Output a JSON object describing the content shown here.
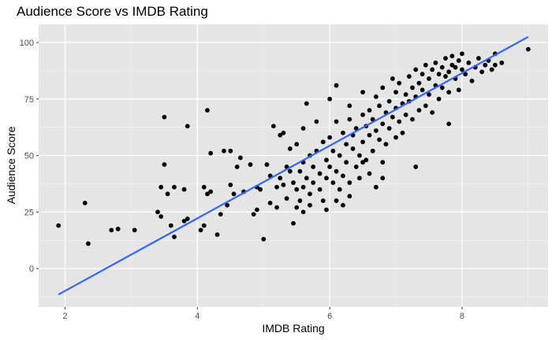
{
  "chart_data": {
    "type": "scatter",
    "title": "Audience Score vs IMDB Rating",
    "xlabel": "IMDB Rating",
    "ylabel": "Audience Score",
    "xlim": [
      1.6,
      9.3
    ],
    "ylim": [
      -17,
      108
    ],
    "x_ticks": [
      2,
      4,
      6,
      8
    ],
    "y_ticks": [
      0,
      25,
      50,
      75,
      100
    ],
    "x_tick_labels": [
      "2",
      "4",
      "6",
      "8"
    ],
    "y_tick_labels": [
      "0",
      "25",
      "50",
      "75",
      "100"
    ],
    "grid": true,
    "background": "#e5e5e5",
    "point_color": "#000000",
    "line_color": "#3366ff",
    "regression_line": {
      "x": [
        1.9,
        9.0
      ],
      "y": [
        -11.5,
        102.5
      ]
    },
    "points": [
      [
        1.9,
        19
      ],
      [
        2.3,
        29
      ],
      [
        2.35,
        11
      ],
      [
        2.7,
        17
      ],
      [
        2.8,
        17.5
      ],
      [
        3.05,
        17
      ],
      [
        3.4,
        25
      ],
      [
        3.45,
        36
      ],
      [
        3.45,
        23
      ],
      [
        3.5,
        46
      ],
      [
        3.5,
        67
      ],
      [
        3.55,
        33
      ],
      [
        3.6,
        19
      ],
      [
        3.65,
        14
      ],
      [
        3.65,
        36
      ],
      [
        3.8,
        21
      ],
      [
        3.8,
        35
      ],
      [
        3.85,
        63
      ],
      [
        3.85,
        22
      ],
      [
        4.05,
        17
      ],
      [
        4.1,
        36
      ],
      [
        4.1,
        19
      ],
      [
        4.15,
        70
      ],
      [
        4.15,
        33
      ],
      [
        4.2,
        51
      ],
      [
        4.2,
        34
      ],
      [
        4.3,
        15
      ],
      [
        4.35,
        24
      ],
      [
        4.4,
        52
      ],
      [
        4.45,
        28
      ],
      [
        4.5,
        52
      ],
      [
        4.5,
        37
      ],
      [
        4.55,
        33
      ],
      [
        4.6,
        45
      ],
      [
        4.65,
        49
      ],
      [
        4.7,
        34
      ],
      [
        4.8,
        46
      ],
      [
        4.85,
        24
      ],
      [
        4.9,
        26
      ],
      [
        4.9,
        36
      ],
      [
        4.95,
        35
      ],
      [
        5.0,
        13
      ],
      [
        5.05,
        46
      ],
      [
        5.1,
        29
      ],
      [
        5.1,
        41
      ],
      [
        5.15,
        63
      ],
      [
        5.2,
        27
      ],
      [
        5.2,
        36
      ],
      [
        5.25,
        40
      ],
      [
        5.25,
        59
      ],
      [
        5.3,
        37
      ],
      [
        5.3,
        60
      ],
      [
        5.35,
        45
      ],
      [
        5.35,
        31
      ],
      [
        5.4,
        53
      ],
      [
        5.4,
        43
      ],
      [
        5.45,
        20
      ],
      [
        5.45,
        38
      ],
      [
        5.5,
        35
      ],
      [
        5.5,
        55
      ],
      [
        5.5,
        27
      ],
      [
        5.55,
        43
      ],
      [
        5.55,
        30
      ],
      [
        5.6,
        47
      ],
      [
        5.6,
        62
      ],
      [
        5.6,
        36
      ],
      [
        5.65,
        73
      ],
      [
        5.65,
        40
      ],
      [
        5.7,
        50
      ],
      [
        5.7,
        33
      ],
      [
        5.7,
        28
      ],
      [
        5.75,
        45
      ],
      [
        5.75,
        38
      ],
      [
        5.8,
        65
      ],
      [
        5.8,
        52
      ],
      [
        5.85,
        42
      ],
      [
        5.85,
        35
      ],
      [
        5.9,
        30
      ],
      [
        5.9,
        56
      ],
      [
        5.95,
        48
      ],
      [
        5.95,
        40
      ],
      [
        5.95,
        26
      ],
      [
        6.0,
        75
      ],
      [
        6.0,
        45
      ],
      [
        6.0,
        58
      ],
      [
        6.05,
        38
      ],
      [
        6.05,
        52
      ],
      [
        6.1,
        81
      ],
      [
        6.1,
        65
      ],
      [
        6.1,
        43
      ],
      [
        6.15,
        50
      ],
      [
        6.15,
        35
      ],
      [
        6.2,
        60
      ],
      [
        6.2,
        41
      ],
      [
        6.25,
        55
      ],
      [
        6.25,
        47
      ],
      [
        6.3,
        72
      ],
      [
        6.3,
        66
      ],
      [
        6.3,
        38
      ],
      [
        6.35,
        53
      ],
      [
        6.35,
        59
      ],
      [
        6.4,
        45
      ],
      [
        6.4,
        62
      ],
      [
        6.45,
        50
      ],
      [
        6.45,
        40
      ],
      [
        6.5,
        78
      ],
      [
        6.5,
        68
      ],
      [
        6.5,
        56
      ],
      [
        6.55,
        63
      ],
      [
        6.55,
        48
      ],
      [
        6.6,
        70
      ],
      [
        6.6,
        59
      ],
      [
        6.6,
        42
      ],
      [
        6.65,
        66
      ],
      [
        6.65,
        52
      ],
      [
        6.7,
        76
      ],
      [
        6.7,
        61
      ],
      [
        6.75,
        57
      ],
      [
        6.75,
        72
      ],
      [
        6.8,
        64
      ],
      [
        6.8,
        80
      ],
      [
        6.8,
        47
      ],
      [
        6.85,
        69
      ],
      [
        6.85,
        55
      ],
      [
        6.9,
        74
      ],
      [
        6.9,
        62
      ],
      [
        6.95,
        67
      ],
      [
        6.95,
        84
      ],
      [
        7.0,
        58
      ],
      [
        7.0,
        71
      ],
      [
        7.0,
        78
      ],
      [
        7.05,
        65
      ],
      [
        7.05,
        82
      ],
      [
        7.1,
        73
      ],
      [
        7.1,
        60
      ],
      [
        7.15,
        77
      ],
      [
        7.15,
        68
      ],
      [
        7.2,
        85
      ],
      [
        7.2,
        74
      ],
      [
        7.25,
        80
      ],
      [
        7.25,
        66
      ],
      [
        7.3,
        88
      ],
      [
        7.3,
        76
      ],
      [
        7.35,
        70
      ],
      [
        7.35,
        82
      ],
      [
        7.4,
        79
      ],
      [
        7.4,
        86
      ],
      [
        7.45,
        72
      ],
      [
        7.45,
        90
      ],
      [
        7.5,
        84
      ],
      [
        7.5,
        77
      ],
      [
        7.55,
        88
      ],
      [
        7.55,
        69
      ],
      [
        7.6,
        81
      ],
      [
        7.6,
        91
      ],
      [
        7.65,
        86
      ],
      [
        7.65,
        75
      ],
      [
        7.7,
        89
      ],
      [
        7.7,
        80
      ],
      [
        7.75,
        93
      ],
      [
        7.75,
        85
      ],
      [
        7.8,
        87
      ],
      [
        7.8,
        78
      ],
      [
        7.85,
        90
      ],
      [
        7.85,
        94
      ],
      [
        7.9,
        84
      ],
      [
        7.9,
        89
      ],
      [
        7.95,
        92
      ],
      [
        7.95,
        79
      ],
      [
        8.0,
        88
      ],
      [
        8.0,
        95
      ],
      [
        8.05,
        86
      ],
      [
        8.1,
        91
      ],
      [
        8.15,
        83
      ],
      [
        8.2,
        89
      ],
      [
        8.25,
        93
      ],
      [
        8.3,
        87
      ],
      [
        8.35,
        90
      ],
      [
        8.4,
        92
      ],
      [
        8.45,
        88
      ],
      [
        8.5,
        95
      ],
      [
        8.5,
        90
      ],
      [
        8.6,
        91
      ],
      [
        9.0,
        97
      ],
      [
        5.6,
        25
      ],
      [
        6.7,
        36
      ],
      [
        6.3,
        32
      ],
      [
        6.1,
        30
      ],
      [
        7.3,
        45
      ],
      [
        6.8,
        40
      ],
      [
        7.8,
        64
      ],
      [
        6.2,
        28
      ],
      [
        6.5,
        47
      ]
    ]
  }
}
